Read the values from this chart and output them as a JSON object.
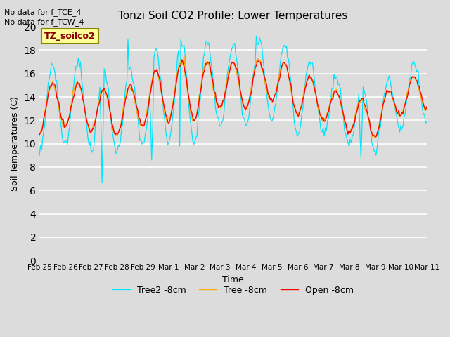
{
  "title": "Tonzi Soil CO2 Profile: Lower Temperatures",
  "xlabel": "Time",
  "ylabel": "Soil Temperatures (C)",
  "ylim": [
    0,
    20
  ],
  "yticks": [
    0,
    2,
    4,
    6,
    8,
    10,
    12,
    14,
    16,
    18,
    20
  ],
  "note1": "No data for f_TCE_4",
  "note2": "No data for f_TCW_4",
  "legend_label": "TZ_soilco2",
  "series_labels": [
    "Open -8cm",
    "Tree -8cm",
    "Tree2 -8cm"
  ],
  "series_colors": [
    "#ff0000",
    "#ffa500",
    "#00e5ff"
  ],
  "background_color": "#dcdcdc",
  "fig_background": "#dcdcdc",
  "xtick_labels": [
    "Feb 25",
    "Feb 26",
    "Feb 27",
    "Feb 28",
    "Feb 29",
    "Mar 1",
    "Mar 2",
    "Mar 3",
    "Mar 4",
    "Mar 5",
    "Mar 6",
    "Mar 7",
    "Mar 8",
    "Mar 9",
    "Mar 10",
    "Mar 11"
  ]
}
